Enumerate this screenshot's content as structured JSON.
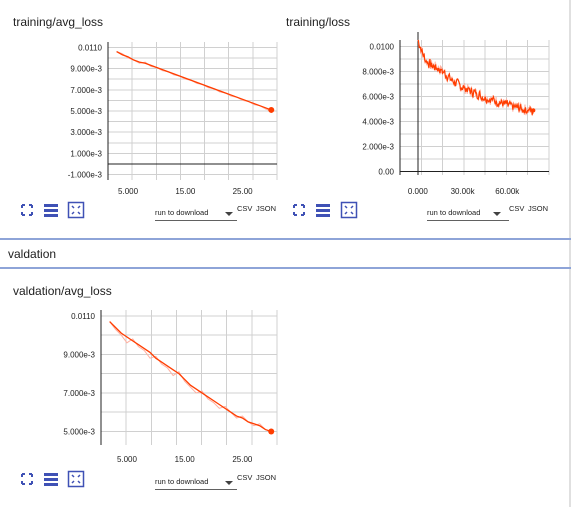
{
  "cards": [
    {
      "title": "training/avg_loss",
      "download_label": "run to download",
      "csv": "CSV",
      "json": "JSON"
    },
    {
      "title": "training/loss",
      "download_label": "run to download",
      "csv": "CSV",
      "json": "JSON"
    },
    {
      "title": "valdation/avg_loss",
      "download_label": "run to download",
      "csv": "CSV",
      "json": "JSON"
    }
  ],
  "sections": {
    "validation_header": "valdation"
  },
  "icons": [
    "expand-icon",
    "list-icon",
    "fit-domain-icon"
  ],
  "colors": {
    "series": "#ff3d00",
    "series_light": "#ffb0a0",
    "separator": "#8ea4d8"
  },
  "chart_data": [
    {
      "type": "line",
      "title": "training/avg_loss",
      "xlabel": "",
      "ylabel": "",
      "xlim": [
        1.5,
        31
      ],
      "ylim": [
        -0.0015,
        0.0115
      ],
      "xticks": [
        5,
        15,
        25
      ],
      "xtick_labels": [
        "5.000",
        "15.00",
        "25.00"
      ],
      "yticks": [
        0.011,
        0.009,
        0.007,
        0.005,
        0.003,
        0.001,
        -0.001
      ],
      "ytick_labels": [
        "0.0110",
        "9.000e-3",
        "7.000e-3",
        "5.000e-3",
        "3.000e-3",
        "1.000e-3",
        "-1.000e-3"
      ],
      "grid": true,
      "series": [
        {
          "x": [
            3,
            4,
            5,
            6,
            7,
            8,
            9,
            10,
            11,
            12,
            13,
            14,
            15,
            16,
            17,
            18,
            19,
            20,
            21,
            22,
            23,
            24,
            25,
            26,
            27,
            28,
            29,
            30
          ],
          "values": [
            0.0106,
            0.0103,
            0.0101,
            0.0098,
            0.0096,
            0.0095,
            0.0093,
            0.0091,
            0.0089,
            0.0087,
            0.0085,
            0.0083,
            0.0081,
            0.0079,
            0.0077,
            0.0075,
            0.0073,
            0.0071,
            0.0069,
            0.0067,
            0.0065,
            0.0063,
            0.0061,
            0.0059,
            0.0057,
            0.0055,
            0.0053,
            0.0051
          ],
          "raw": [
            0.0106,
            0.0104,
            0.01,
            0.0098,
            0.0095,
            0.0096,
            0.0092,
            0.0091,
            0.0088,
            0.0087,
            0.0084,
            0.0083,
            0.008,
            0.0079,
            0.0076,
            0.0075,
            0.0072,
            0.0071,
            0.0068,
            0.0067,
            0.0064,
            0.0063,
            0.006,
            0.0059,
            0.0056,
            0.0055,
            0.0052,
            0.005
          ]
        }
      ]
    },
    {
      "type": "line",
      "title": "training/loss",
      "xlabel": "",
      "ylabel": "",
      "xlim": [
        -12000,
        88000
      ],
      "ylim": [
        -0.0003,
        0.0105
      ],
      "xticks": [
        0,
        30000,
        60000
      ],
      "xtick_labels": [
        "0.000",
        "30.00k",
        "60.00k"
      ],
      "yticks": [
        0.01,
        0.008,
        0.006,
        0.004,
        0.002,
        0
      ],
      "ytick_labels": [
        "0.0100",
        "8.000e-3",
        "6.000e-3",
        "4.000e-3",
        "2.000e-3",
        "0.00"
      ],
      "grid": true,
      "series": [
        {
          "x": [
            0,
            2500,
            5000,
            7500,
            10000,
            12500,
            15000,
            17500,
            20000,
            22500,
            25000,
            27500,
            30000,
            32500,
            35000,
            37500,
            40000,
            42500,
            45000,
            47500,
            50000,
            52500,
            55000,
            57500,
            60000,
            62500,
            65000,
            67500,
            70000,
            72500,
            75000,
            77500
          ],
          "values": [
            0.0105,
            0.0096,
            0.0089,
            0.0086,
            0.0084,
            0.0083,
            0.0081,
            0.0079,
            0.0076,
            0.0073,
            0.0071,
            0.0069,
            0.0067,
            0.0066,
            0.0064,
            0.0063,
            0.0062,
            0.006,
            0.0059,
            0.0058,
            0.0057,
            0.0056,
            0.0055,
            0.0054,
            0.0053,
            0.0052,
            0.0051,
            0.0051,
            0.005,
            0.0049,
            0.0049,
            0.0047
          ],
          "noise_band": 0.0009
        }
      ]
    },
    {
      "type": "line",
      "title": "valdation/avg_loss",
      "xlabel": "",
      "ylabel": "",
      "xlim": [
        0.5,
        31
      ],
      "ylim": [
        0.0043,
        0.0113
      ],
      "xticks": [
        5,
        15,
        25
      ],
      "xtick_labels": [
        "5.000",
        "15.00",
        "25.00"
      ],
      "yticks": [
        0.011,
        0.009,
        0.007,
        0.005
      ],
      "ytick_labels": [
        "0.0110",
        "9.000e-3",
        "7.000e-3",
        "5.000e-3"
      ],
      "grid": true,
      "series": [
        {
          "x": [
            2,
            3,
            4,
            5,
            6,
            7,
            8,
            9,
            10,
            11,
            12,
            13,
            14,
            15,
            16,
            17,
            18,
            19,
            20,
            21,
            22,
            23,
            24,
            25,
            26,
            27,
            28,
            29,
            30
          ],
          "values": [
            0.0107,
            0.0104,
            0.0101,
            0.0099,
            0.0097,
            0.0095,
            0.0093,
            0.0091,
            0.0088,
            0.0086,
            0.0084,
            0.0082,
            0.008,
            0.0077,
            0.0074,
            0.0072,
            0.007,
            0.0068,
            0.0066,
            0.0064,
            0.0062,
            0.006,
            0.0058,
            0.0057,
            0.0055,
            0.0054,
            0.0053,
            0.0051,
            0.005
          ],
          "raw": [
            0.0107,
            0.0103,
            0.01,
            0.0096,
            0.0098,
            0.0094,
            0.0092,
            0.0088,
            0.0089,
            0.0085,
            0.0083,
            0.0079,
            0.0081,
            0.0076,
            0.0073,
            0.007,
            0.0071,
            0.0067,
            0.0065,
            0.0062,
            0.0063,
            0.006,
            0.0057,
            0.0058,
            0.0055,
            0.0053,
            0.0054,
            0.0051,
            0.005
          ]
        }
      ]
    }
  ]
}
